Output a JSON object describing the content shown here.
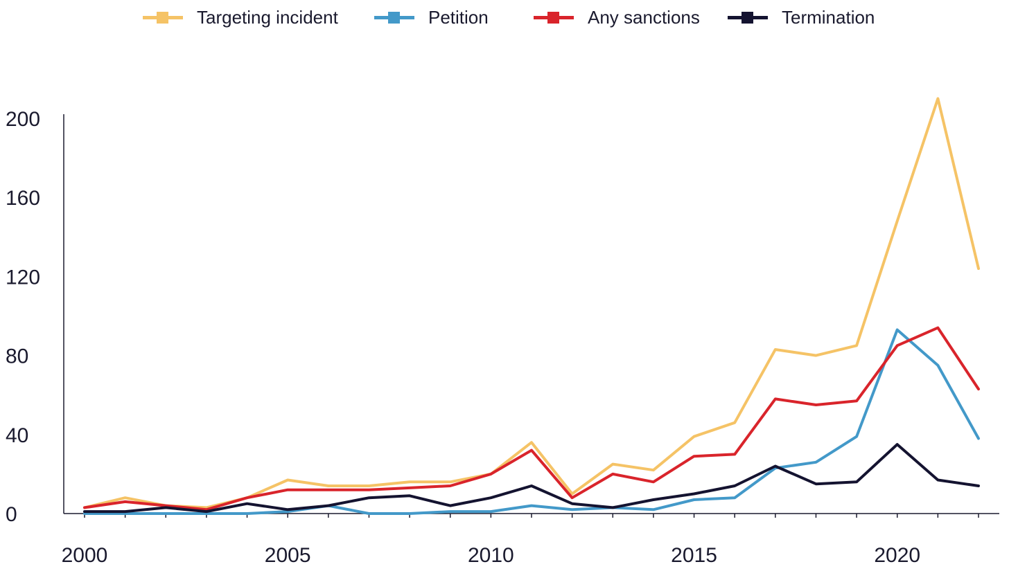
{
  "chart_data": {
    "type": "line",
    "title": "",
    "xlabel": "",
    "ylabel": "",
    "xlim": [
      2000,
      2022
    ],
    "ylim": [
      0,
      200
    ],
    "x": [
      2000,
      2001,
      2002,
      2003,
      2004,
      2005,
      2006,
      2007,
      2008,
      2009,
      2010,
      2011,
      2012,
      2013,
      2014,
      2015,
      2016,
      2017,
      2018,
      2019,
      2020,
      2021,
      2022
    ],
    "x_ticks": [
      "2000",
      "2005",
      "2010",
      "2015",
      "2020"
    ],
    "y_ticks": [
      "0",
      "40",
      "80",
      "120",
      "160",
      "200"
    ],
    "grid": false,
    "legend_position": "top",
    "series": [
      {
        "name": "Targeting incident",
        "color": "#f5c366",
        "values": [
          3,
          8,
          4,
          3,
          8,
          17,
          14,
          14,
          16,
          16,
          20,
          36,
          10,
          25,
          22,
          39,
          46,
          83,
          80,
          85,
          148,
          210,
          124
        ]
      },
      {
        "name": "Petition",
        "color": "#4399c9",
        "values": [
          0,
          0,
          0,
          0,
          0,
          1,
          4,
          0,
          0,
          1,
          1,
          4,
          2,
          3,
          2,
          7,
          8,
          23,
          26,
          39,
          93,
          75,
          38
        ]
      },
      {
        "name": "Any sanctions",
        "color": "#d9242b",
        "values": [
          3,
          6,
          4,
          2,
          8,
          12,
          12,
          12,
          13,
          14,
          20,
          32,
          8,
          20,
          16,
          29,
          30,
          58,
          55,
          57,
          85,
          94,
          63
        ]
      },
      {
        "name": "Termination",
        "color": "#141330",
        "values": [
          1,
          1,
          3,
          1,
          5,
          2,
          4,
          8,
          9,
          4,
          8,
          14,
          5,
          3,
          7,
          10,
          14,
          24,
          15,
          16,
          35,
          17,
          14
        ]
      }
    ]
  }
}
